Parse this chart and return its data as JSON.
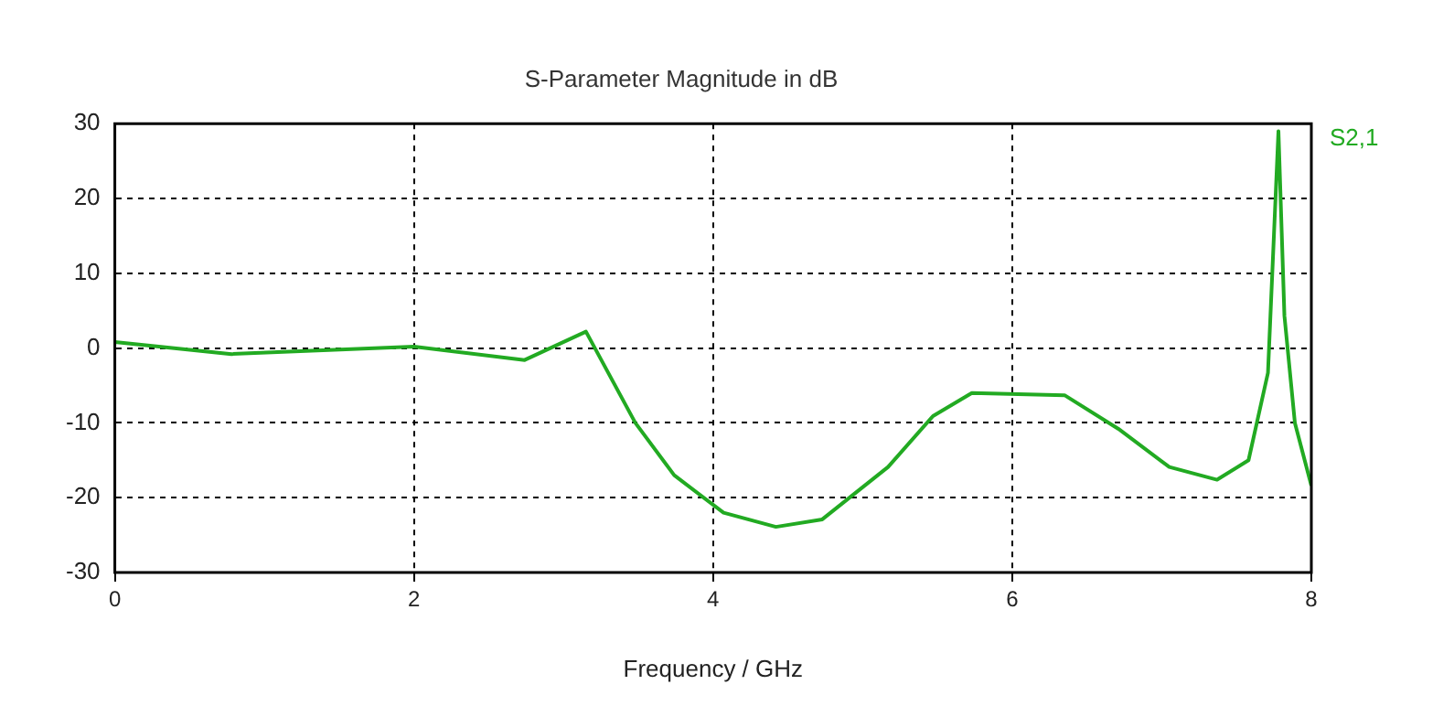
{
  "chart_data": {
    "type": "line",
    "title": "S-Parameter Magnitude in dB",
    "xlabel": "Frequency / GHz",
    "xlim": [
      0,
      8
    ],
    "xticks": [
      0,
      2,
      4,
      6,
      8
    ],
    "ylim": [
      -30,
      30
    ],
    "yticks": [
      -30,
      -20,
      -10,
      0,
      10,
      20,
      30
    ],
    "grid": true,
    "legend": "top right",
    "line_style": "solid",
    "marker": "none",
    "series": [
      {
        "name": "S2,1",
        "color": "#22aa22",
        "x": [
          0,
          0.78,
          2.0,
          2.74,
          3.15,
          3.48,
          3.74,
          4.07,
          4.42,
          4.73,
          5.17,
          5.47,
          5.73,
          6.35,
          6.71,
          7.05,
          7.37,
          7.58,
          7.71,
          7.78,
          7.82,
          7.89,
          8.0
        ],
        "values": [
          0.8,
          -0.8,
          0.2,
          -1.6,
          2.2,
          -10,
          -17,
          -22,
          -23.9,
          -22.9,
          -15.9,
          -9.1,
          -6.0,
          -6.3,
          -10.8,
          -15.9,
          -17.6,
          -15,
          -3.3,
          29,
          4.3,
          -10,
          -18.4
        ]
      }
    ]
  }
}
